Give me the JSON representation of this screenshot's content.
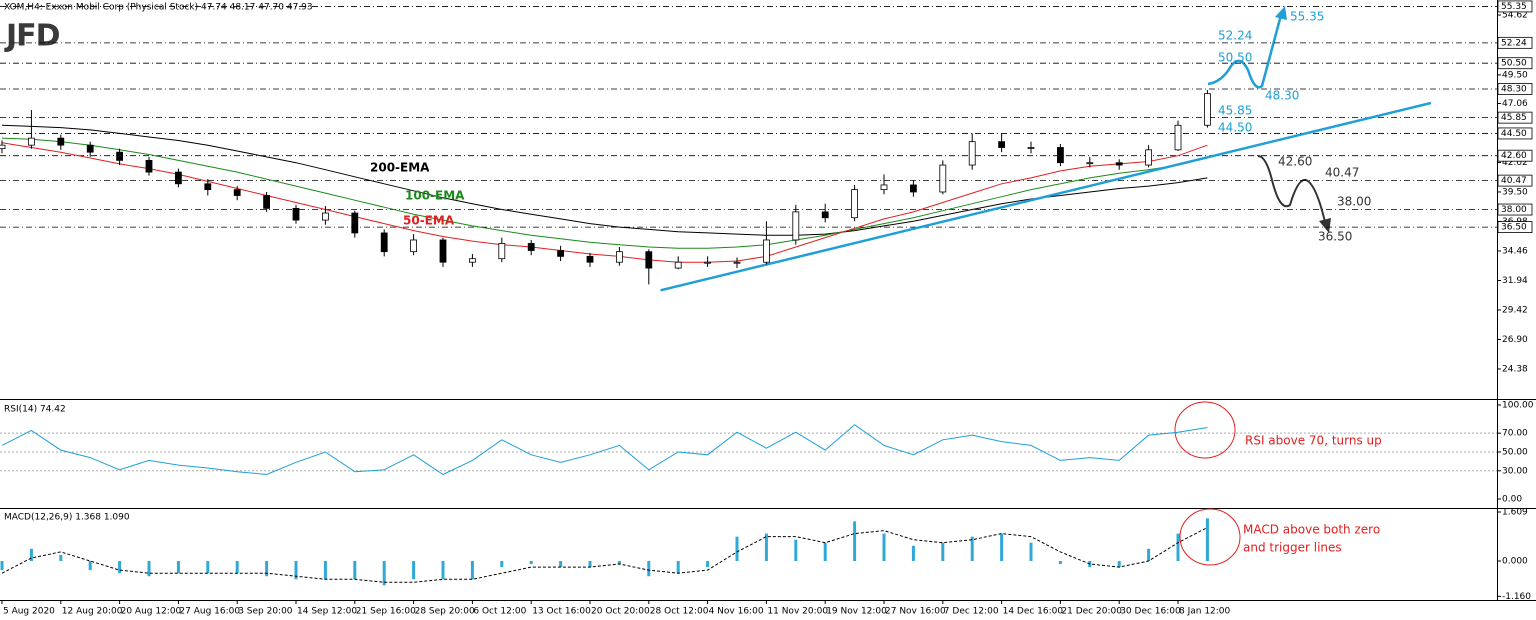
{
  "logo": "JFD",
  "chart_data": [
    {
      "type": "candlestick",
      "title": "XOM,H4: Exxon Mobil Corp (Physical Stock) 47.74 48.17 47.70 47.93",
      "x": [
        0,
        1,
        2,
        3,
        4,
        5,
        6,
        7,
        8,
        9,
        10,
        11,
        12,
        13,
        14,
        15,
        16,
        17,
        18,
        19,
        20,
        21,
        22,
        23,
        24,
        25,
        26,
        27,
        28,
        29,
        30,
        31,
        32,
        33,
        34,
        35,
        36,
        37,
        38,
        39,
        40,
        41
      ],
      "open": [
        43.2,
        43.5,
        44.1,
        43.5,
        42.9,
        42.2,
        41.2,
        40.2,
        39.7,
        39.2,
        38.1,
        37.1,
        37.7,
        36.0,
        34.4,
        35.4,
        33.5,
        33.8,
        35.1,
        34.5,
        34.0,
        33.5,
        34.4,
        33.0,
        33.5,
        33.5,
        33.5,
        35.4,
        37.8,
        37.3,
        39.7,
        40.1,
        39.5,
        41.8,
        43.8,
        43.3,
        43.3,
        42.0,
        42.0,
        41.8,
        43.1,
        45.2
      ],
      "high": [
        43.9,
        46.5,
        44.4,
        43.8,
        43.2,
        42.5,
        41.5,
        40.6,
        40.0,
        39.5,
        38.4,
        38.3,
        37.9,
        36.3,
        35.9,
        35.6,
        34.2,
        35.6,
        35.4,
        34.9,
        34.3,
        34.8,
        34.6,
        34.0,
        34.0,
        33.9,
        37.0,
        38.4,
        38.5,
        40.1,
        41.0,
        40.5,
        42.2,
        44.5,
        44.5,
        43.8,
        43.6,
        42.5,
        42.3,
        43.5,
        45.6,
        48.2
      ],
      "low": [
        42.8,
        43.2,
        43.1,
        42.5,
        41.8,
        40.9,
        39.9,
        39.2,
        38.8,
        37.8,
        36.8,
        36.7,
        35.6,
        34.0,
        34.1,
        33.1,
        33.1,
        33.5,
        34.1,
        33.6,
        33.1,
        33.2,
        31.6,
        32.9,
        33.1,
        33.0,
        33.3,
        35.0,
        36.9,
        37.0,
        39.3,
        39.1,
        39.3,
        41.4,
        42.9,
        42.8,
        41.7,
        41.6,
        41.4,
        41.6,
        43.0,
        45.0
      ],
      "close": [
        43.5,
        44.1,
        43.5,
        42.9,
        42.2,
        41.2,
        40.2,
        39.7,
        39.2,
        38.1,
        37.1,
        37.7,
        36.0,
        34.4,
        35.4,
        33.5,
        33.8,
        35.1,
        34.5,
        34.0,
        33.5,
        34.4,
        33.0,
        33.5,
        33.5,
        33.5,
        35.4,
        37.8,
        37.3,
        39.7,
        40.1,
        39.5,
        41.8,
        43.8,
        43.3,
        43.3,
        42.0,
        42.0,
        41.8,
        43.1,
        45.2,
        47.9
      ],
      "series": [
        {
          "name": "200-EMA",
          "color": "#000000",
          "values": [
            45.2,
            45.1,
            45.0,
            44.8,
            44.5,
            44.2,
            43.9,
            43.5,
            43.0,
            42.5,
            42.0,
            41.4,
            40.8,
            40.2,
            39.6,
            39.0,
            38.5,
            38.0,
            37.6,
            37.2,
            36.8,
            36.5,
            36.3,
            36.1,
            36.0,
            35.9,
            35.8,
            35.8,
            35.9,
            36.2,
            36.6,
            37.0,
            37.5,
            38.0,
            38.5,
            38.9,
            39.2,
            39.5,
            39.8,
            40.0,
            40.3,
            40.7
          ]
        },
        {
          "name": "100-EMA",
          "color": "#1a8a1a",
          "values": [
            44.1,
            44.0,
            43.8,
            43.5,
            43.1,
            42.7,
            42.2,
            41.7,
            41.2,
            40.6,
            40.0,
            39.4,
            38.8,
            38.2,
            37.6,
            37.1,
            36.6,
            36.2,
            35.8,
            35.5,
            35.2,
            35.0,
            34.8,
            34.7,
            34.7,
            34.8,
            35.0,
            35.4,
            35.8,
            36.3,
            36.8,
            37.3,
            37.9,
            38.5,
            39.1,
            39.7,
            40.2,
            40.7,
            41.1,
            41.4,
            41.8,
            42.4
          ]
        },
        {
          "name": "50-EMA",
          "color": "#e02020",
          "values": [
            43.7,
            43.3,
            42.9,
            42.4,
            41.9,
            41.5,
            41.0,
            40.4,
            39.8,
            39.2,
            38.6,
            38.0,
            37.4,
            36.8,
            36.2,
            35.7,
            35.3,
            35.0,
            34.8,
            34.5,
            34.2,
            34.0,
            33.7,
            33.5,
            33.5,
            33.6,
            34.0,
            34.8,
            35.6,
            36.4,
            37.2,
            37.8,
            38.6,
            39.4,
            40.2,
            40.7,
            41.3,
            41.7,
            41.9,
            42.1,
            42.6,
            43.5
          ]
        }
      ],
      "trendline": {
        "x": [
          22.4,
          48.6
        ],
        "y": [
          31.1,
          47.1
        ],
        "color": "#1e9fd8"
      },
      "levels": [
        55.35,
        52.24,
        {
          "value": 50.5,
          "label": "50.50"
        },
        {
          "value": 48.3,
          "label": "48.30"
        },
        45.85,
        {
          "value": 44.5,
          "label": "44.50"
        },
        {
          "value": 42.6,
          "label": "42.60"
        },
        40.47,
        {
          "value": 38,
          "label": "38.00"
        },
        {
          "value": 36.5,
          "label": "36.50"
        }
      ],
      "xlim": [
        -0.068,
        50.85
      ],
      "ylim": [
        21.9,
        55.9
      ],
      "yticks": [
        54.62,
        {
          "value": 49.5,
          "label": "49.50"
        },
        47.06,
        42.02,
        {
          "value": 39.5,
          "label": "39.50"
        },
        36.98,
        34.46,
        31.94,
        29.42,
        {
          "value": 26.9,
          "label": "26.90"
        },
        24.38
      ]
    },
    {
      "type": "line",
      "title": "RSI(14) 74.42",
      "x": [
        0,
        1,
        2,
        3,
        4,
        5,
        6,
        7,
        8,
        9,
        10,
        11,
        12,
        13,
        14,
        15,
        16,
        17,
        18,
        19,
        20,
        21,
        22,
        23,
        24,
        25,
        26,
        27,
        28,
        29,
        30,
        31,
        32,
        33,
        34,
        35,
        36,
        37,
        38,
        39,
        40,
        41
      ],
      "values": [
        57,
        73,
        52,
        44,
        31,
        41,
        36,
        33,
        29,
        26,
        39,
        50,
        29,
        31,
        47,
        26,
        41,
        63,
        47,
        39,
        47,
        57,
        31,
        50,
        47,
        71,
        54,
        71,
        52,
        79,
        57,
        47,
        63,
        68,
        61,
        57,
        41,
        44,
        41,
        68,
        71,
        76
      ],
      "color": "#1e9fd8",
      "levels": [
        70,
        50,
        30
      ],
      "annotation": "RSI above 70, turns up",
      "xlim": [
        -0.068,
        50.85
      ],
      "ylim": [
        -9.6,
        105.3
      ],
      "yticks": [
        {
          "value": 100,
          "label": "100.00"
        },
        {
          "value": 70,
          "label": "70.00"
        },
        {
          "value": 50,
          "label": "50.00"
        },
        {
          "value": 30,
          "label": "30.00"
        },
        {
          "value": 0,
          "label": "0.00"
        }
      ]
    },
    {
      "type": "bar",
      "title": "MACD(12,26,9) 1.368 1.090",
      "x": [
        0,
        1,
        2,
        3,
        4,
        5,
        6,
        7,
        8,
        9,
        10,
        11,
        12,
        13,
        14,
        15,
        16,
        17,
        18,
        19,
        20,
        21,
        22,
        23,
        24,
        25,
        26,
        27,
        28,
        29,
        30,
        31,
        32,
        33,
        34,
        35,
        36,
        37,
        38,
        39,
        40,
        41
      ],
      "values": [
        -0.3,
        0.4,
        0.2,
        -0.3,
        -0.4,
        -0.5,
        -0.4,
        -0.4,
        -0.4,
        -0.5,
        -0.6,
        -0.6,
        -0.6,
        -0.8,
        -0.6,
        -0.6,
        -0.6,
        -0.2,
        -0.1,
        -0.2,
        -0.2,
        -0.1,
        -0.5,
        -0.4,
        -0.2,
        0.8,
        0.9,
        0.7,
        0.6,
        1.3,
        0.9,
        0.5,
        0.6,
        0.8,
        0.9,
        0.6,
        -0.1,
        -0.2,
        -0.2,
        0.4,
        0.9,
        1.4
      ],
      "color": "#30a9d6",
      "signal": [
        -0.4,
        0.1,
        0.3,
        0.0,
        -0.3,
        -0.4,
        -0.4,
        -0.4,
        -0.4,
        -0.4,
        -0.5,
        -0.6,
        -0.6,
        -0.7,
        -0.7,
        -0.6,
        -0.6,
        -0.4,
        -0.2,
        -0.2,
        -0.2,
        -0.1,
        -0.3,
        -0.4,
        -0.3,
        0.3,
        0.8,
        0.8,
        0.6,
        0.9,
        1.0,
        0.7,
        0.6,
        0.7,
        0.9,
        0.8,
        0.3,
        -0.1,
        -0.2,
        0.0,
        0.6,
        1.1
      ],
      "signal_color": "#000000",
      "annotation": [
        "MACD above both zero",
        "and trigger lines"
      ],
      "xlim": [
        -0.068,
        50.85
      ],
      "ylim": [
        -1.281,
        1.708
      ],
      "yticks": [
        1.609,
        {
          "value": 0,
          "label": "0.000"
        },
        {
          "value": -1.16,
          "label": "-1.160"
        }
      ],
      "xticks": [
        {
          "value": 0,
          "label": "5 Aug 2020"
        },
        {
          "value": 2,
          "label": "12 Aug 20:00"
        },
        {
          "value": 4,
          "label": "20 Aug 12:00"
        },
        {
          "value": 6,
          "label": "27 Aug 16:00"
        },
        {
          "value": 8,
          "label": "3 Sep 20:00"
        },
        {
          "value": 10,
          "label": "14 Sep 12:00"
        },
        {
          "value": 12,
          "label": "21 Sep 16:00"
        },
        {
          "value": 14,
          "label": "28 Sep 20:00"
        },
        {
          "value": 16,
          "label": "6 Oct 12:00"
        },
        {
          "value": 18,
          "label": "13 Oct 16:00"
        },
        {
          "value": 20,
          "label": "20 Oct 20:00"
        },
        {
          "value": 22,
          "label": "28 Oct 12:00"
        },
        {
          "value": 24,
          "label": "4 Nov 16:00"
        },
        {
          "value": 26,
          "label": "11 Nov 20:00"
        },
        {
          "value": 28,
          "label": "19 Nov 12:00"
        },
        {
          "value": 30,
          "label": "27 Nov 16:00"
        },
        {
          "value": 32,
          "label": "7 Dec 12:00"
        },
        {
          "value": 34,
          "label": "14 Dec 16:00"
        },
        {
          "value": 36,
          "label": "21 Dec 20:00"
        },
        {
          "value": 38,
          "label": "30 Dec 16:00"
        },
        {
          "value": 40,
          "label": "8 Jan 12:00"
        }
      ]
    }
  ]
}
